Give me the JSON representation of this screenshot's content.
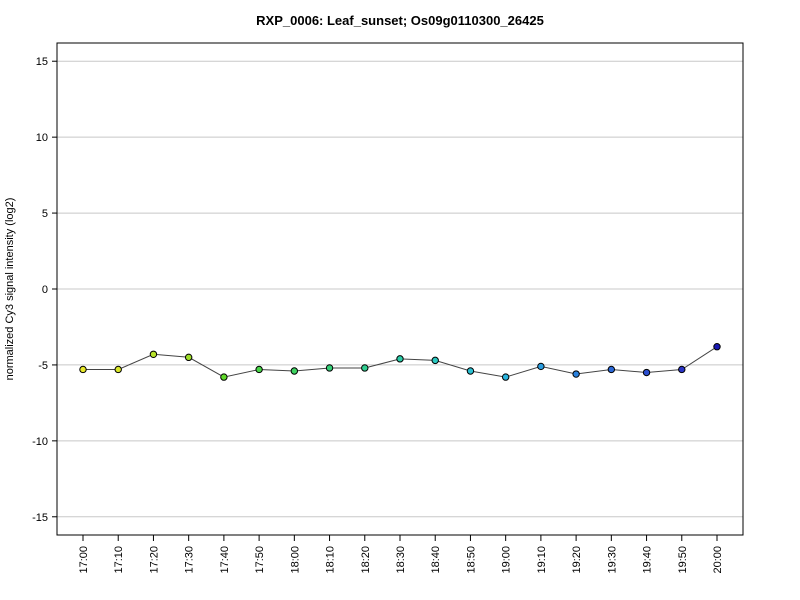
{
  "chart_data": {
    "type": "line",
    "title": "RXP_0006: Leaf_sunset; Os09g0110300_26425",
    "xlabel": "",
    "ylabel": "normalized Cy3 signal intensity (log2)",
    "categories": [
      "17:00",
      "17:10",
      "17:20",
      "17:30",
      "17:40",
      "17:50",
      "18:00",
      "18:10",
      "18:20",
      "18:30",
      "18:40",
      "18:50",
      "19:00",
      "19:10",
      "19:20",
      "19:30",
      "19:40",
      "19:50",
      "20:00"
    ],
    "series": [
      {
        "values": [
          -5.3,
          -5.3,
          -4.3,
          -4.5,
          -5.8,
          -5.3,
          -5.4,
          -5.2,
          -5.2,
          -4.6,
          -4.7,
          -5.4,
          -5.8,
          -5.1,
          -5.6,
          -5.3,
          -5.5,
          -5.3,
          -3.8
        ]
      }
    ],
    "point_colors": [
      "#e8e82a",
      "#d8e62a",
      "#b7e22a",
      "#9ede2a",
      "#5fd92a",
      "#48d648",
      "#3dd360",
      "#36d078",
      "#30ce90",
      "#2bcca8",
      "#2ac8c0",
      "#2ac0d2",
      "#2ab4de",
      "#2a9de0",
      "#2a82de",
      "#2a68d8",
      "#2a4ed0",
      "#2a34c6",
      "#1a1ab4"
    ],
    "yticks": [
      15,
      10,
      5,
      0,
      -5,
      -10,
      -15
    ],
    "ylim": [
      -16.2,
      16.2
    ],
    "grid": true,
    "grid_axis": "y",
    "legend": "none"
  }
}
